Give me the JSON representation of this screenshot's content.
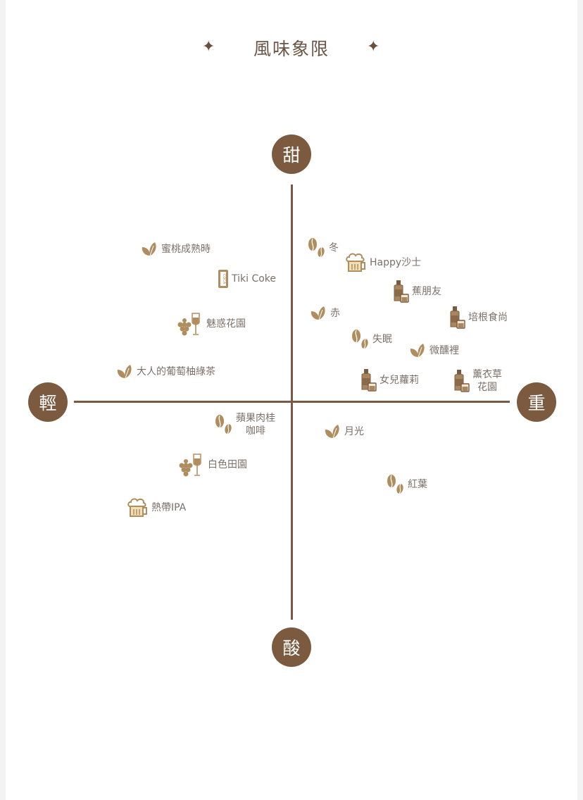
{
  "title": "風味象限",
  "axes": {
    "top": "甜",
    "bottom": "酸",
    "left": "輕",
    "right": "重"
  },
  "colors": {
    "axis": "#7a5a42",
    "pole": "#7b5a40",
    "icon": "#b08d5e",
    "label": "#7b7068"
  },
  "items": [
    {
      "label": "蜜桃成熟時",
      "icon": "tea-leaf-icon"
    },
    {
      "label": "Tiki Coke",
      "icon": "cola-can-icon"
    },
    {
      "label": "魅惑花園",
      "icon": "wine-grape-icon"
    },
    {
      "label": "大人的葡萄柚綠茶",
      "icon": "tea-leaf-icon"
    },
    {
      "label": "冬",
      "icon": "coffee-bean-icon"
    },
    {
      "label": "Happy沙士",
      "icon": "beer-mug-icon"
    },
    {
      "label": "蕉朋友",
      "icon": "whiskey-bottle-icon"
    },
    {
      "label": "赤",
      "icon": "tea-leaf-icon"
    },
    {
      "label": "培根食尚",
      "icon": "whiskey-bottle-icon"
    },
    {
      "label": "失眠",
      "icon": "coffee-bean-icon"
    },
    {
      "label": "微醺裡",
      "icon": "tea-leaf-icon"
    },
    {
      "label": "女兒蘿莉",
      "icon": "whiskey-bottle-icon"
    },
    {
      "label": "薰衣草\n花園",
      "icon": "whiskey-bottle-icon"
    },
    {
      "label": "蘋果肉桂\n咖啡",
      "icon": "coffee-bean-icon"
    },
    {
      "label": "月光",
      "icon": "tea-leaf-icon"
    },
    {
      "label": "白色田園",
      "icon": "wine-grape-icon"
    },
    {
      "label": "紅葉",
      "icon": "coffee-bean-icon"
    },
    {
      "label": "熱帶IPA",
      "icon": "beer-mug-icon"
    }
  ]
}
